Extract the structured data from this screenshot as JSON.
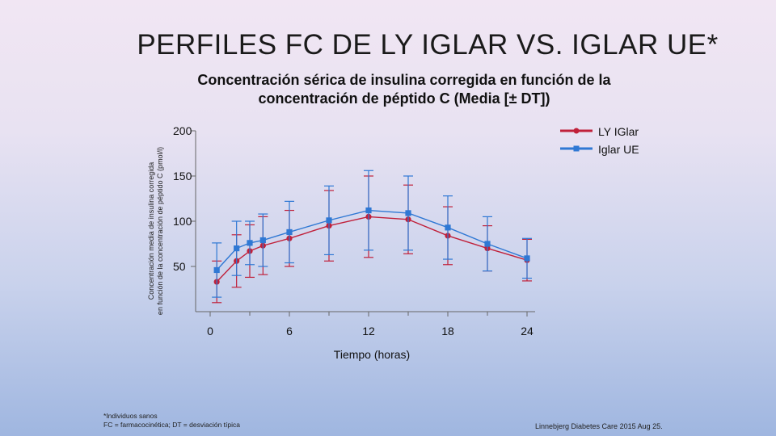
{
  "page": {
    "title": "PERFILES FC DE LY IGLAR VS. IGLAR UE*",
    "footnote_lines": [
      "*Individuos sanos",
      "FC = farmacocinética; DT = desviación típica"
    ],
    "citation": "Linnebjerg Diabetes Care 2015 Aug 25."
  },
  "chart_data": {
    "type": "line",
    "title": "Concentración sérica de insulina corregida en función de la concentración de péptido C (Media [± DT])",
    "title_lines": [
      "Concentración sérica de insulina corregida en función de la",
      "concentración de péptido C (Media [± DT])"
    ],
    "xlabel": "Tiempo (horas)",
    "ylabel_lines": [
      "Concentración media de insulina corregida",
      "en función de la concentración de péptido C (pmol/l)"
    ],
    "xlim": [
      0,
      24
    ],
    "ylim": [
      0,
      200
    ],
    "xticks": [
      0,
      6,
      12,
      18,
      24
    ],
    "yticks": [
      50,
      100,
      150,
      200
    ],
    "legend_position": "top-right",
    "series": [
      {
        "name": "LY IGlar",
        "color": "#c0203a",
        "marker": "circle",
        "x": [
          0.5,
          2,
          3,
          4,
          6,
          9,
          12,
          15,
          18,
          21,
          24
        ],
        "y": [
          33,
          56,
          67,
          73,
          81,
          95,
          105,
          102,
          84,
          70,
          57
        ],
        "err": [
          23,
          29,
          29,
          32,
          31,
          39,
          45,
          38,
          32,
          25,
          23
        ]
      },
      {
        "name": "Iglar UE",
        "color": "#2f78d4",
        "marker": "square",
        "x": [
          0.5,
          2,
          3,
          4,
          6,
          9,
          12,
          15,
          18,
          21,
          24
        ],
        "y": [
          46,
          70,
          76,
          79,
          88,
          101,
          112,
          109,
          93,
          75,
          59
        ],
        "err": [
          30,
          30,
          24,
          29,
          34,
          38,
          44,
          41,
          35,
          30,
          22
        ]
      }
    ]
  }
}
